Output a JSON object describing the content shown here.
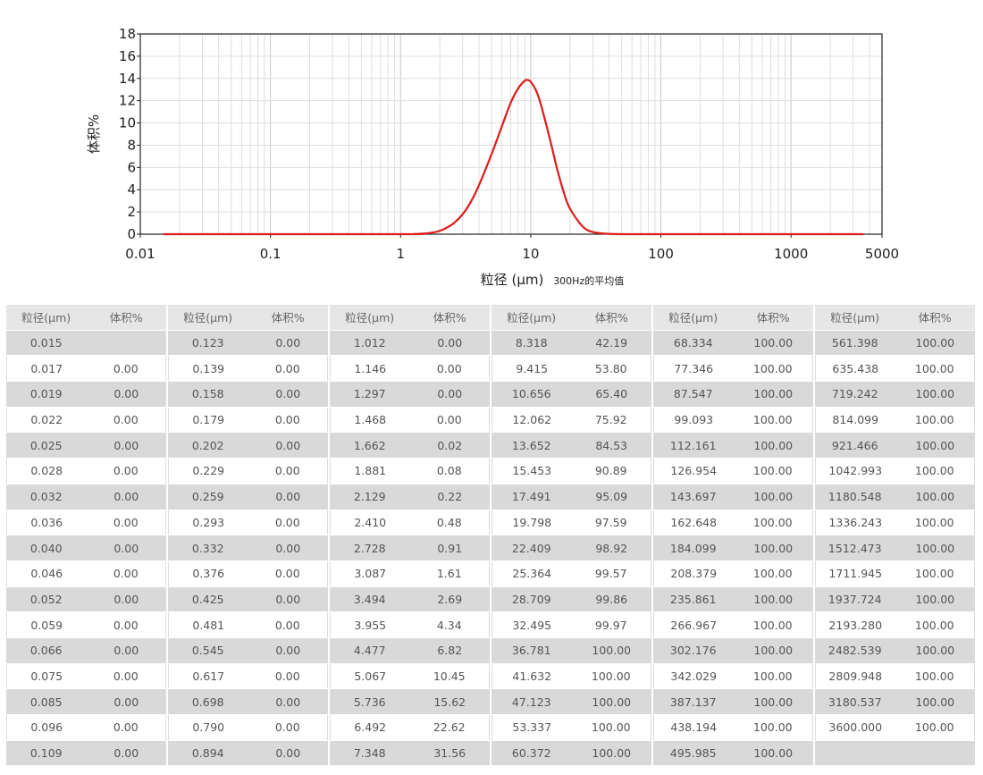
{
  "chart_data": {
    "type": "line",
    "xscale": "log",
    "xlim": [
      0.01,
      5000
    ],
    "ylim": [
      0,
      18
    ],
    "xticks": [
      "0.01",
      "0.1",
      "1",
      "10",
      "100",
      "1000",
      "5000"
    ],
    "yticks": [
      "0",
      "2",
      "4",
      "6",
      "8",
      "10",
      "12",
      "14",
      "16",
      "18"
    ],
    "ylabel": "体积%",
    "xlabel": "粒径 (μm)",
    "xlabel_note": "300Hz的平均值",
    "grid": true,
    "series_color": "#dd1c1a",
    "series": [
      {
        "x": [
          0.015,
          1.0,
          1.3,
          1.6,
          2.0,
          2.5,
          3.0,
          3.5,
          4.0,
          5.0,
          6.0,
          7.0,
          8.0,
          9.0,
          9.5,
          10.0,
          11.0,
          12.0,
          14.0,
          16.0,
          18.0,
          20.0,
          25.0,
          30.0,
          40.0,
          60.0,
          100.0,
          3600.0
        ],
        "y": [
          0,
          0,
          0.02,
          0.08,
          0.3,
          0.9,
          1.8,
          3.0,
          4.4,
          7.2,
          9.7,
          11.8,
          13.1,
          13.8,
          13.85,
          13.7,
          12.9,
          11.6,
          8.6,
          5.8,
          3.7,
          2.3,
          0.7,
          0.2,
          0.03,
          0,
          0,
          0
        ]
      }
    ]
  },
  "table": {
    "headers": [
      "粒径(μm)",
      "体积%"
    ],
    "groups": [
      {
        "rows": [
          [
            "0.015",
            ""
          ],
          [
            "0.017",
            "0.00"
          ],
          [
            "0.019",
            "0.00"
          ],
          [
            "0.022",
            "0.00"
          ],
          [
            "0.025",
            "0.00"
          ],
          [
            "0.028",
            "0.00"
          ],
          [
            "0.032",
            "0.00"
          ],
          [
            "0.036",
            "0.00"
          ],
          [
            "0.040",
            "0.00"
          ],
          [
            "0.046",
            "0.00"
          ],
          [
            "0.052",
            "0.00"
          ],
          [
            "0.059",
            "0.00"
          ],
          [
            "0.066",
            "0.00"
          ],
          [
            "0.075",
            "0.00"
          ],
          [
            "0.085",
            "0.00"
          ],
          [
            "0.096",
            "0.00"
          ],
          [
            "0.109",
            "0.00"
          ]
        ]
      },
      {
        "rows": [
          [
            "0.123",
            "0.00"
          ],
          [
            "0.139",
            "0.00"
          ],
          [
            "0.158",
            "0.00"
          ],
          [
            "0.179",
            "0.00"
          ],
          [
            "0.202",
            "0.00"
          ],
          [
            "0.229",
            "0.00"
          ],
          [
            "0.259",
            "0.00"
          ],
          [
            "0.293",
            "0.00"
          ],
          [
            "0.332",
            "0.00"
          ],
          [
            "0.376",
            "0.00"
          ],
          [
            "0.425",
            "0.00"
          ],
          [
            "0.481",
            "0.00"
          ],
          [
            "0.545",
            "0.00"
          ],
          [
            "0.617",
            "0.00"
          ],
          [
            "0.698",
            "0.00"
          ],
          [
            "0.790",
            "0.00"
          ],
          [
            "0.894",
            "0.00"
          ]
        ]
      },
      {
        "rows": [
          [
            "1.012",
            "0.00"
          ],
          [
            "1.146",
            "0.00"
          ],
          [
            "1.297",
            "0.00"
          ],
          [
            "1.468",
            "0.00"
          ],
          [
            "1.662",
            "0.02"
          ],
          [
            "1.881",
            "0.08"
          ],
          [
            "2.129",
            "0.22"
          ],
          [
            "2.410",
            "0.48"
          ],
          [
            "2.728",
            "0.91"
          ],
          [
            "3.087",
            "1.61"
          ],
          [
            "3.494",
            "2.69"
          ],
          [
            "3.955",
            "4.34"
          ],
          [
            "4.477",
            "6.82"
          ],
          [
            "5.067",
            "10.45"
          ],
          [
            "5.736",
            "15.62"
          ],
          [
            "6.492",
            "22.62"
          ],
          [
            "7.348",
            "31.56"
          ]
        ]
      },
      {
        "rows": [
          [
            "8.318",
            "42.19"
          ],
          [
            "9.415",
            "53.80"
          ],
          [
            "10.656",
            "65.40"
          ],
          [
            "12.062",
            "75.92"
          ],
          [
            "13.652",
            "84.53"
          ],
          [
            "15.453",
            "90.89"
          ],
          [
            "17.491",
            "95.09"
          ],
          [
            "19.798",
            "97.59"
          ],
          [
            "22.409",
            "98.92"
          ],
          [
            "25.364",
            "99.57"
          ],
          [
            "28.709",
            "99.86"
          ],
          [
            "32.495",
            "99.97"
          ],
          [
            "36.781",
            "100.00"
          ],
          [
            "41.632",
            "100.00"
          ],
          [
            "47.123",
            "100.00"
          ],
          [
            "53.337",
            "100.00"
          ],
          [
            "60.372",
            "100.00"
          ]
        ]
      },
      {
        "rows": [
          [
            "68.334",
            "100.00"
          ],
          [
            "77.346",
            "100.00"
          ],
          [
            "87.547",
            "100.00"
          ],
          [
            "99.093",
            "100.00"
          ],
          [
            "112.161",
            "100.00"
          ],
          [
            "126.954",
            "100.00"
          ],
          [
            "143.697",
            "100.00"
          ],
          [
            "162.648",
            "100.00"
          ],
          [
            "184.099",
            "100.00"
          ],
          [
            "208.379",
            "100.00"
          ],
          [
            "235.861",
            "100.00"
          ],
          [
            "266.967",
            "100.00"
          ],
          [
            "302.176",
            "100.00"
          ],
          [
            "342.029",
            "100.00"
          ],
          [
            "387.137",
            "100.00"
          ],
          [
            "438.194",
            "100.00"
          ],
          [
            "495.985",
            "100.00"
          ]
        ]
      },
      {
        "rows": [
          [
            "561.398",
            "100.00"
          ],
          [
            "635.438",
            "100.00"
          ],
          [
            "719.242",
            "100.00"
          ],
          [
            "814.099",
            "100.00"
          ],
          [
            "921.466",
            "100.00"
          ],
          [
            "1042.993",
            "100.00"
          ],
          [
            "1180.548",
            "100.00"
          ],
          [
            "1336.243",
            "100.00"
          ],
          [
            "1512.473",
            "100.00"
          ],
          [
            "1711.945",
            "100.00"
          ],
          [
            "1937.724",
            "100.00"
          ],
          [
            "2193.280",
            "100.00"
          ],
          [
            "2482.539",
            "100.00"
          ],
          [
            "2809.948",
            "100.00"
          ],
          [
            "3180.537",
            "100.00"
          ],
          [
            "3600.000",
            "100.00"
          ],
          [
            "",
            ""
          ]
        ]
      }
    ]
  }
}
